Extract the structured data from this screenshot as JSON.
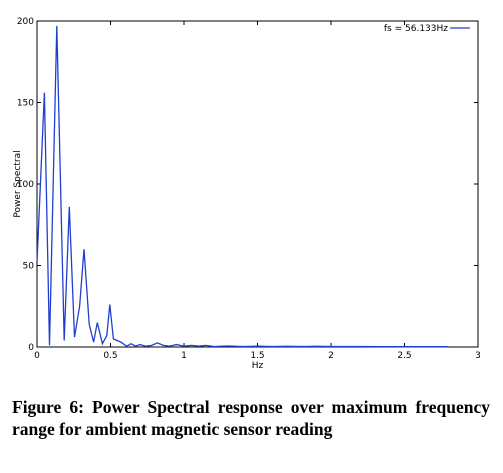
{
  "chart_data": {
    "type": "line",
    "title": "",
    "xlabel": "Hz",
    "ylabel": "Power Spectral",
    "xlim": [
      0,
      3
    ],
    "ylim": [
      0,
      200
    ],
    "x_ticks": [
      "0",
      "0.5",
      "1",
      "1.5",
      "2",
      "2.5",
      "3"
    ],
    "y_ticks": [
      "0",
      "50",
      "100",
      "150",
      "200"
    ],
    "grid": false,
    "legend_position": "top-right",
    "series": [
      {
        "name": "fs = 56.133Hz",
        "color": "#1f3fd0",
        "x": [
          0.0,
          0.05,
          0.085,
          0.135,
          0.185,
          0.22,
          0.255,
          0.29,
          0.32,
          0.355,
          0.385,
          0.41,
          0.445,
          0.475,
          0.495,
          0.52,
          0.57,
          0.61,
          0.64,
          0.67,
          0.7,
          0.74,
          0.78,
          0.82,
          0.86,
          0.9,
          0.95,
          1.0,
          1.05,
          1.1,
          1.15,
          1.2,
          1.3,
          1.4,
          1.5,
          1.6,
          1.7,
          1.8,
          1.9,
          2.0,
          2.2,
          2.4,
          2.6,
          2.8
        ],
        "y": [
          52,
          156,
          1,
          197,
          4,
          86,
          6,
          25,
          60,
          14,
          3,
          15,
          2,
          7,
          26,
          5,
          3,
          0.5,
          2,
          0.5,
          1.5,
          0.5,
          1,
          2.5,
          1,
          0.5,
          1.5,
          0.5,
          1,
          0.5,
          1,
          0.3,
          0.6,
          0.3,
          0.5,
          0.3,
          0.4,
          0.3,
          0.4,
          0.3,
          0.3,
          0.2,
          0.2,
          0.2
        ]
      }
    ]
  },
  "caption": "Figure 6: Power Spectral response over maximum frequency range for ambient magnetic sensor reading"
}
